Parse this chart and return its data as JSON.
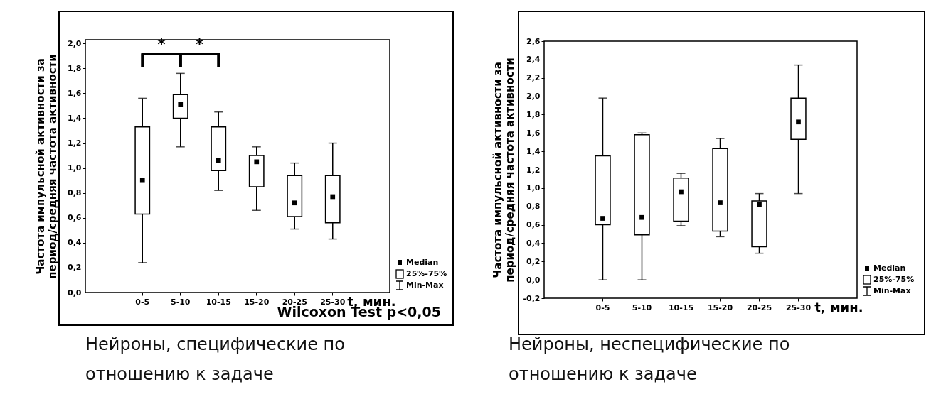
{
  "chart_data": [
    {
      "type": "box",
      "title": "Нейроны, специфические по отношению к задаче",
      "xlabel": "t, мин.",
      "ylabel": "Частота импульсной активности за\nпериод/средняя частота активности",
      "categories": [
        "0-5",
        "5-10",
        "10-15",
        "15-20",
        "20-25",
        "25-30"
      ],
      "boxes": [
        {
          "low": 0.24,
          "q1": 0.63,
          "median": 0.9,
          "q3": 1.33,
          "high": 1.56
        },
        {
          "low": 1.17,
          "q1": 1.4,
          "median": 1.51,
          "q3": 1.59,
          "high": 1.76
        },
        {
          "low": 0.82,
          "q1": 0.98,
          "median": 1.06,
          "q3": 1.33,
          "high": 1.45
        },
        {
          "low": 0.66,
          "q1": 0.85,
          "median": 1.05,
          "q3": 1.1,
          "high": 1.17
        },
        {
          "low": 0.51,
          "q1": 0.61,
          "median": 0.72,
          "q3": 0.94,
          "high": 1.04
        },
        {
          "low": 0.43,
          "q1": 0.56,
          "median": 0.77,
          "q3": 0.94,
          "high": 1.2
        }
      ],
      "ylim": [
        0,
        2.03
      ],
      "yticks": [
        {
          "value": 0,
          "label": "0,0"
        },
        {
          "value": 0.2,
          "label": "0,2"
        },
        {
          "value": 0.4,
          "label": "0,4"
        },
        {
          "value": 0.6,
          "label": "0,6"
        },
        {
          "value": 0.8,
          "label": "0,8"
        },
        {
          "value": 1,
          "label": "1,0"
        },
        {
          "value": 1.2,
          "label": "1,2"
        },
        {
          "value": 1.4,
          "label": "1,4"
        },
        {
          "value": 1.6,
          "label": "1,6"
        },
        {
          "value": 1.8,
          "label": "1,8"
        },
        {
          "value": 2,
          "label": "2,0"
        }
      ],
      "annotations": [
        "*",
        "*",
        "Wilcoxon Test p<0,05",
        "Median",
        "25%-75%",
        "Min-Max"
      ]
    },
    {
      "type": "box",
      "title": "Нейроны, неспецифические по отношению к задаче",
      "xlabel": "t, мин.",
      "ylabel": "Частота импульсной активности за\nпериод/средняя частота активности",
      "categories": [
        "0-5",
        "5-10",
        "10-15",
        "15-20",
        "20-25",
        "25-30"
      ],
      "boxes": [
        {
          "low": 0,
          "q1": 0.6,
          "median": 0.67,
          "q3": 1.35,
          "high": 1.98
        },
        {
          "low": 0,
          "q1": 0.49,
          "median": 0.68,
          "q3": 1.58,
          "high": 1.6
        },
        {
          "low": 0.59,
          "q1": 0.64,
          "median": 0.96,
          "q3": 1.11,
          "high": 1.16
        },
        {
          "low": 0.47,
          "q1": 0.53,
          "median": 0.84,
          "q3": 1.43,
          "high": 1.54
        },
        {
          "low": 0.29,
          "q1": 0.36,
          "median": 0.82,
          "q3": 0.86,
          "high": 0.94
        },
        {
          "low": 0.94,
          "q1": 1.53,
          "median": 1.72,
          "q3": 1.98,
          "high": 2.34
        }
      ],
      "ylim": [
        -0.2,
        2.6
      ],
      "yticks": [
        {
          "value": -0.2,
          "label": "-0,2"
        },
        {
          "value": 0,
          "label": "0,0"
        },
        {
          "value": 0.2,
          "label": "0,2"
        },
        {
          "value": 0.4,
          "label": "0,4"
        },
        {
          "value": 0.6,
          "label": "0,6"
        },
        {
          "value": 0.8,
          "label": "0,8"
        },
        {
          "value": 1,
          "label": "1,0"
        },
        {
          "value": 1.2,
          "label": "1,2"
        },
        {
          "value": 1.4,
          "label": "1,4"
        },
        {
          "value": 1.6,
          "label": "1,6"
        },
        {
          "value": 1.8,
          "label": "1,8"
        },
        {
          "value": 2,
          "label": "2,0"
        },
        {
          "value": 2.2,
          "label": "2,2"
        },
        {
          "value": 2.4,
          "label": "2,4"
        },
        {
          "value": 2.6,
          "label": "2,6"
        }
      ],
      "annotations": [
        "Median",
        "25%-75%",
        "Min-Max"
      ]
    }
  ]
}
